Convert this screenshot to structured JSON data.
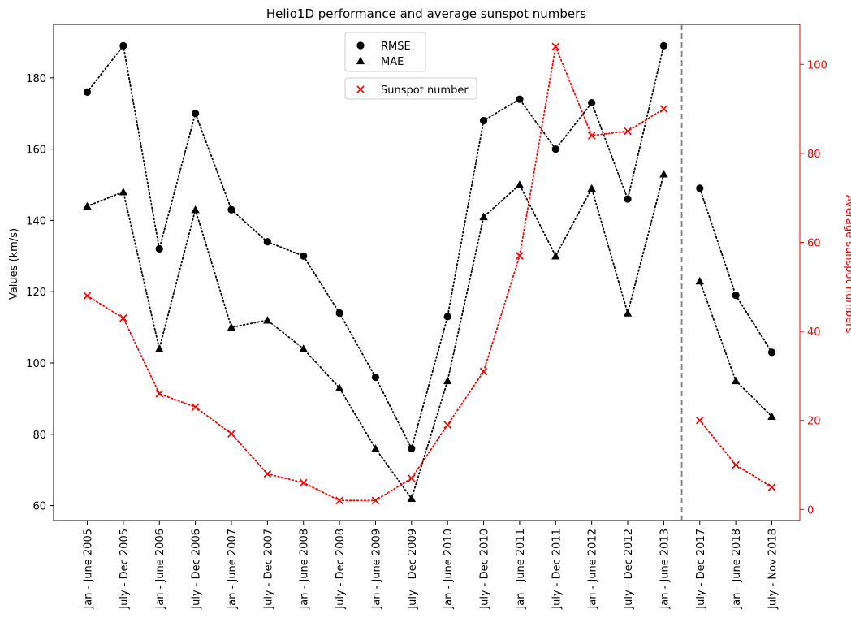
{
  "chart_data": {
    "type": "line",
    "title": "Helio1D performance and average sunspot numbers",
    "ylabel_left": "Values (km/s)",
    "ylabel_right": "Average sunspot numbers",
    "categories": [
      "Jan - June 2005",
      "July - Dec 2005",
      "Jan - June 2006",
      "July - Dec 2006",
      "Jan - June 2007",
      "July - Dec 2007",
      "Jan - June 2008",
      "July - Dec 2008",
      "Jan - June 2009",
      "July - Dec 2009",
      "Jan - June 2010",
      "July - Dec 2010",
      "Jan - June 2011",
      "July - Dec 2011",
      "Jan - June 2012",
      "July - Dec 2012",
      "Jan - June 2013",
      "July - Dec 2017",
      "Jan - June 2018",
      "July - Nov 2018"
    ],
    "ylim_left": [
      55.8,
      195
    ],
    "yticks_left": [
      60,
      80,
      100,
      120,
      140,
      160,
      180
    ],
    "ylim_right": [
      -2.5,
      109
    ],
    "yticks_right": [
      0,
      20,
      40,
      60,
      80,
      100
    ],
    "break_after_index": 16,
    "series": [
      {
        "name": "RMSE",
        "axis": "left",
        "marker": "circle",
        "color": "#000000",
        "values": [
          176,
          189,
          132,
          170,
          143,
          134,
          130,
          114,
          96,
          76,
          113,
          168,
          174,
          160,
          173,
          146,
          189,
          149,
          119,
          103
        ]
      },
      {
        "name": "MAE",
        "axis": "left",
        "marker": "triangle",
        "color": "#000000",
        "values": [
          144,
          148,
          104,
          143,
          110,
          112,
          104,
          93,
          76,
          62,
          95,
          141,
          150,
          130,
          149,
          114,
          153,
          123,
          95,
          85
        ]
      },
      {
        "name": "Sunspot number",
        "axis": "right",
        "marker": "x",
        "color": "#ff0000",
        "values": [
          48,
          43,
          26,
          23,
          17,
          8,
          6,
          2,
          2,
          7,
          19,
          31,
          57,
          104,
          84,
          85,
          90,
          20,
          10,
          5
        ]
      }
    ],
    "grid": false,
    "legend": "top-center",
    "right_axis_color": "#ff0000"
  }
}
